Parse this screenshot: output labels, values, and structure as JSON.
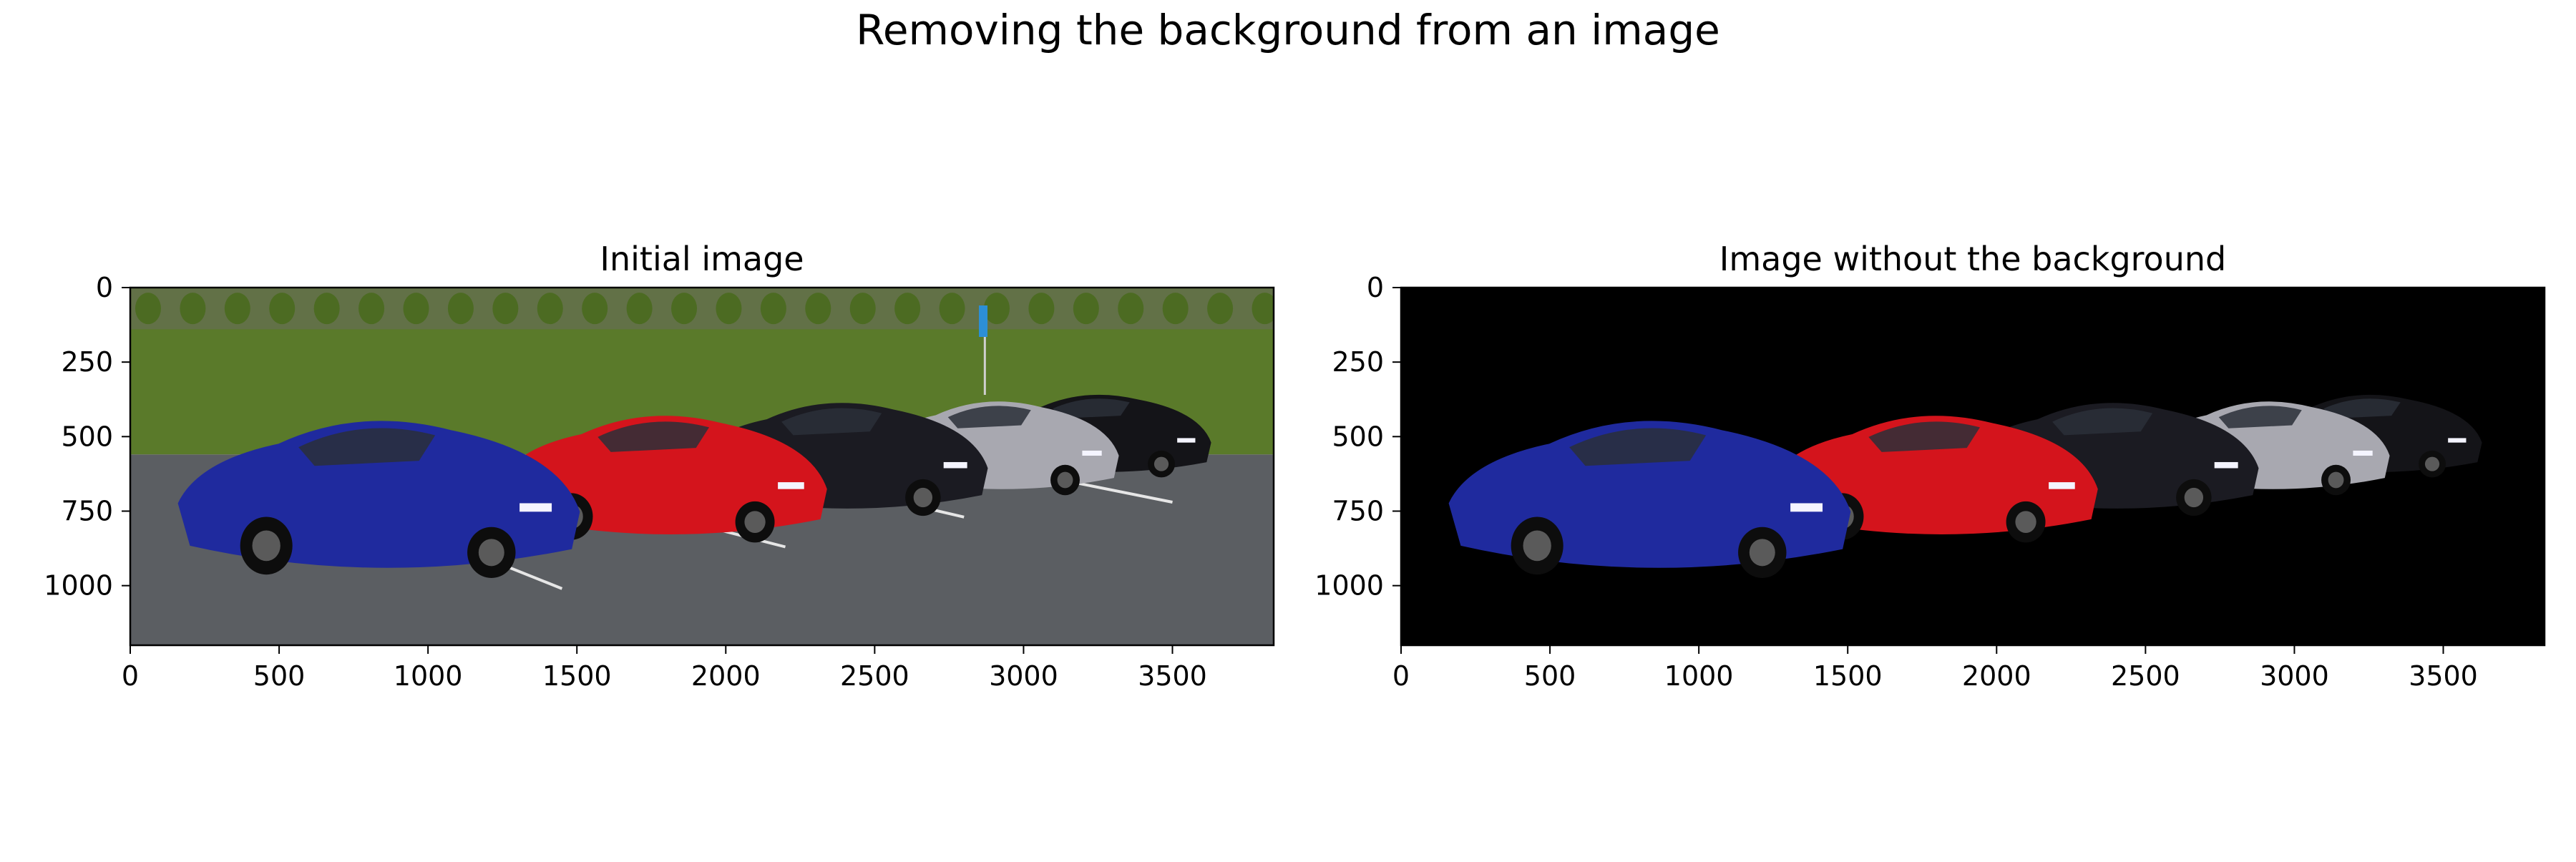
{
  "chart_data": {
    "title": "Removing the background from an image",
    "panels": [
      {
        "type": "image",
        "title": "Initial image",
        "xlim": [
          0,
          3840
        ],
        "ylim": [
          1200,
          0
        ],
        "xticks": [
          0,
          500,
          1000,
          1500,
          2000,
          2500,
          3000,
          3500
        ],
        "yticks": [
          0,
          250,
          500,
          750,
          1000
        ],
        "background": "photo",
        "grid": false
      },
      {
        "type": "image",
        "title": "Image without the background",
        "xlim": [
          0,
          3840
        ],
        "ylim": [
          1200,
          0
        ],
        "xticks": [
          0,
          500,
          1000,
          1500,
          2000,
          2500,
          3000,
          3500
        ],
        "yticks": [
          0,
          250,
          500,
          750,
          1000
        ],
        "background": "black",
        "grid": false
      }
    ],
    "cars": [
      {
        "name": "blue-car",
        "color": "#1f2a9e",
        "x0": 160,
        "x1": 1510,
        "y0": 410,
        "y1": 980
      },
      {
        "name": "red-car",
        "color": "#d4141c",
        "x0": 1240,
        "x1": 2340,
        "y0": 400,
        "y1": 860
      },
      {
        "name": "black-car-front",
        "color": "#1b1b22",
        "x0": 1890,
        "x1": 2880,
        "y0": 360,
        "y1": 770
      },
      {
        "name": "silver-car",
        "color": "#a8a8b0",
        "x0": 2500,
        "x1": 3320,
        "y0": 360,
        "y1": 700
      },
      {
        "name": "black-car-rear",
        "color": "#141418",
        "x0": 2870,
        "x1": 3630,
        "y0": 340,
        "y1": 640
      }
    ],
    "colors": {
      "grass": "#5a7a2a",
      "asphalt": "#5b5e62",
      "hedge": "#4c6b22",
      "fence": "#6a6a5e",
      "sign": "#2c8fd6"
    }
  }
}
